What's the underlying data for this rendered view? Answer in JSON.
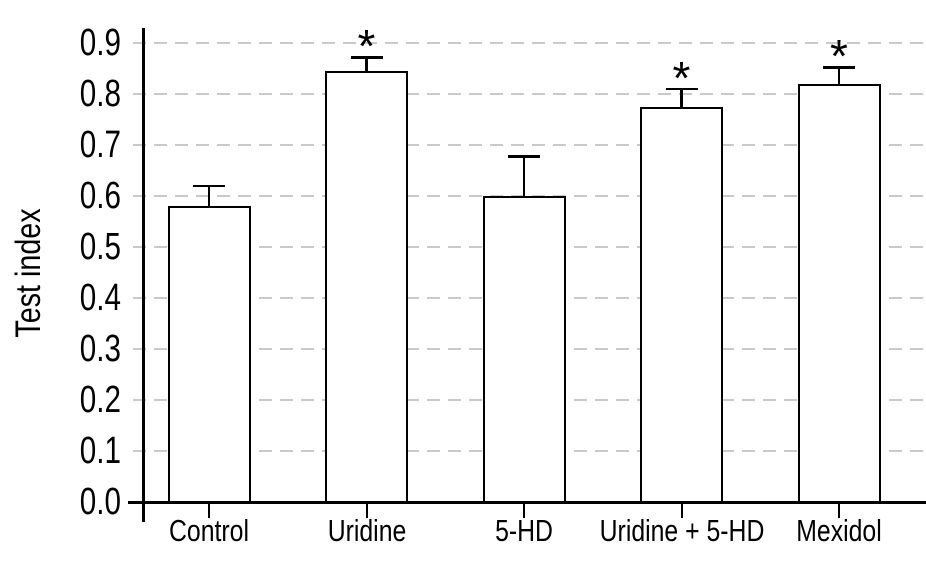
{
  "chart_data": {
    "type": "bar",
    "title": "",
    "xlabel": "",
    "ylabel": "Test index",
    "ylim": [
      0.0,
      0.9
    ],
    "ytick_step": 0.1,
    "ytick_labels": [
      "0.0",
      "0.1",
      "0.2",
      "0.3",
      "0.4",
      "0.5",
      "0.6",
      "0.7",
      "0.8",
      "0.9"
    ],
    "categories": [
      "Control",
      "Uridine",
      "5-HD",
      "Uridine + 5-HD",
      "Mexidol"
    ],
    "values": [
      0.58,
      0.845,
      0.6,
      0.775,
      0.82
    ],
    "errors_upper": [
      0.04,
      0.027,
      0.078,
      0.035,
      0.032
    ],
    "significance": [
      false,
      true,
      false,
      true,
      true
    ],
    "significance_marker": "*",
    "legend": null,
    "grid": "horizontal-dashed",
    "gridline_color": "#c9c9c9",
    "bar_fill": "#ffffff",
    "bar_border_color": "#000000",
    "axis_color": "#000000"
  }
}
